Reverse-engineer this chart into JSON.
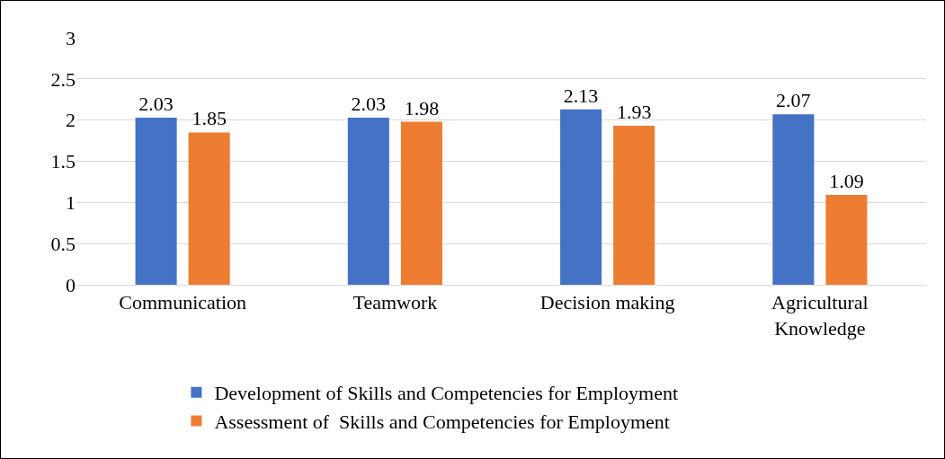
{
  "chart_data": {
    "type": "bar",
    "categories": [
      "Communication",
      "Teamwork",
      "Decision making",
      "Agricultural Knowledge"
    ],
    "series": [
      {
        "name": "Development of Skills and Competencies for Employment",
        "color": "#4472c4",
        "values": [
          2.03,
          2.03,
          2.13,
          2.07
        ]
      },
      {
        "name": "Assessment of  Skills and Competencies for Employment",
        "color": "#ed7d31",
        "values": [
          1.85,
          1.98,
          1.93,
          1.09
        ]
      }
    ],
    "ylim": [
      0,
      3
    ],
    "yticks": [
      0,
      0.5,
      1,
      1.5,
      2,
      2.5,
      3
    ],
    "grid": "y",
    "data_labels": true,
    "legend": "bottom"
  }
}
